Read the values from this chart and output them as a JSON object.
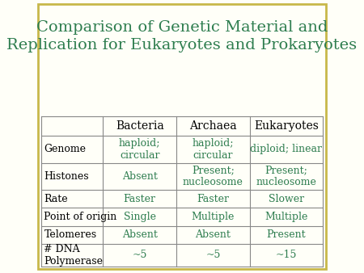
{
  "title": "Comparison of Genetic Material and\nReplication for Eukaryotes and Prokaryotes",
  "title_color": "#2e7d4f",
  "title_fontsize": 14,
  "bg_color": "#fffff8",
  "border_color": "#c8b84a",
  "table_line_color": "#888888",
  "header_row": [
    "",
    "Bacteria",
    "Archaea",
    "Eukaryotes"
  ],
  "header_text_color": "#000000",
  "header_fontsize": 10,
  "rows": [
    [
      "Genome",
      "haploid;\ncircular",
      "haploid;\ncircular",
      "diploid; linear"
    ],
    [
      "Histones",
      "Absent",
      "Present;\nnucleosome",
      "Present;\nnucleosome"
    ],
    [
      "Rate",
      "Faster",
      "Faster",
      "Slower"
    ],
    [
      "Point of origin",
      "Single",
      "Multiple",
      "Multiple"
    ],
    [
      "Telomeres",
      "Absent",
      "Absent",
      "Present"
    ],
    [
      "# DNA\nPolymerase",
      "~5",
      "~5",
      "~15"
    ]
  ],
  "row_label_color": "#000000",
  "cell_value_color": "#2e7d4f",
  "cell_fontsize": 9,
  "row_label_fontsize": 9
}
